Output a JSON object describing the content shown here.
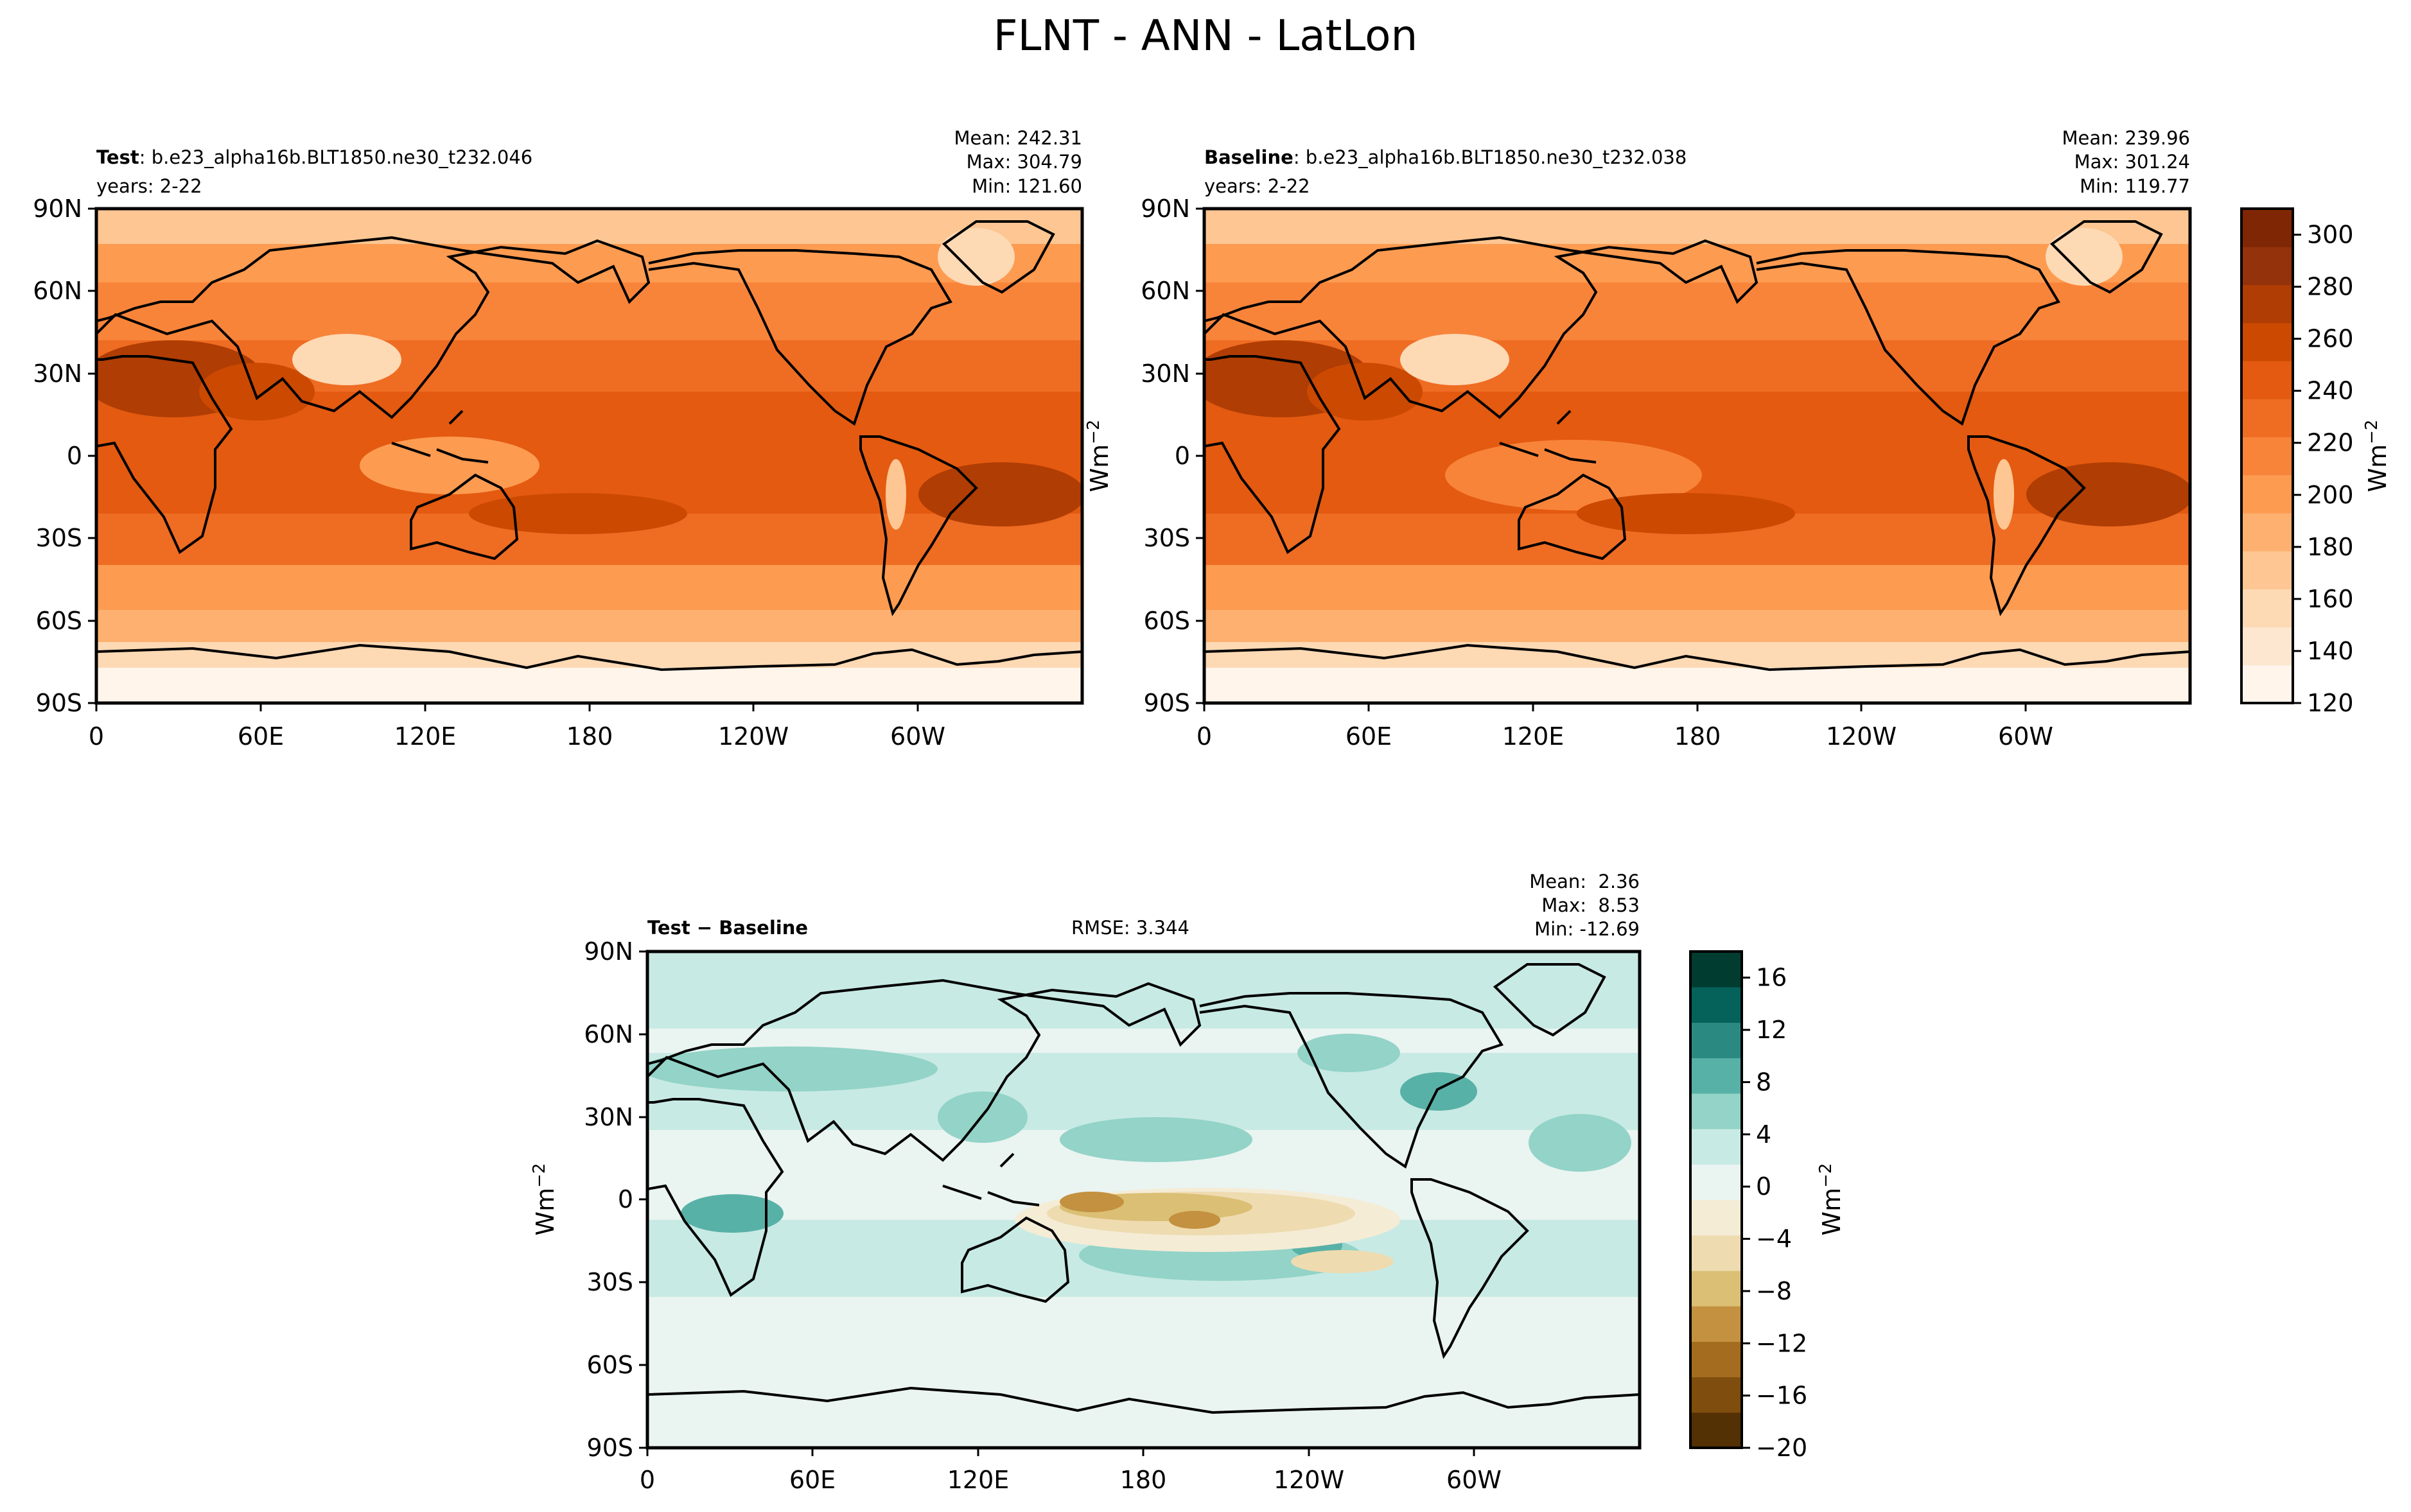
{
  "figure": {
    "title": "FLNT - ANN - LatLon"
  },
  "colors": {
    "orange_scale": [
      "#fff5eb",
      "#fee7d0",
      "#fdd9b4",
      "#fdc692",
      "#fdb06f",
      "#fd9b51",
      "#f8843a",
      "#ef6c23",
      "#e35a10",
      "#cc4902",
      "#b03d03",
      "#93320b",
      "#7f2704"
    ],
    "diff_scale": [
      "#543005",
      "#7f4d0d",
      "#a36c1f",
      "#c3913f",
      "#dbbf75",
      "#eedbb0",
      "#f5ecd6",
      "#eaf4f1",
      "#c8eae4",
      "#93d3c8",
      "#58b1a6",
      "#2a8a81",
      "#05625a",
      "#003c30"
    ],
    "coast": "#000000"
  },
  "chart_data": [
    {
      "type": "heatmap",
      "panel_label_bold": "Test",
      "panel_label_rest": ": b.e23_alpha16b.BLT1850.ne30_t232.046",
      "years": "years: 2-22",
      "stats": [
        "Mean: 242.31",
        "Max: 304.79",
        "Min: 121.60"
      ],
      "mean": 242.31,
      "max": 304.79,
      "min": 121.6,
      "x_ticks": [
        "0",
        "60E",
        "120E",
        "180",
        "120W",
        "60W"
      ],
      "y_ticks": [
        "90N",
        "60N",
        "30N",
        "0",
        "30S",
        "60S",
        "90S"
      ],
      "units": "Wm",
      "units_sup": "−2",
      "value_range": [
        120,
        310
      ]
    },
    {
      "type": "heatmap",
      "panel_label_bold": "Baseline",
      "panel_label_rest": ": b.e23_alpha16b.BLT1850.ne30_t232.038",
      "years": "years: 2-22",
      "stats": [
        "Mean: 239.96",
        "Max: 301.24",
        "Min: 119.77"
      ],
      "mean": 239.96,
      "max": 301.24,
      "min": 119.77,
      "x_ticks": [
        "0",
        "60E",
        "120E",
        "180",
        "120W",
        "60W"
      ],
      "y_ticks": [
        "90N",
        "60N",
        "30N",
        "0",
        "30S",
        "60S",
        "90S"
      ],
      "colorbar_ticks": [
        "300",
        "280",
        "260",
        "240",
        "220",
        "200",
        "180",
        "160",
        "140",
        "120"
      ],
      "colorbar_range": [
        120,
        310
      ],
      "units": "Wm",
      "units_sup": "−2"
    },
    {
      "type": "heatmap",
      "panel_label_bold": "Test − Baseline",
      "rmse": "RMSE: 3.344",
      "stats": [
        "Mean:  2.36",
        "Max:  8.53",
        "Min: -12.69"
      ],
      "mean": 2.36,
      "max": 8.53,
      "min": -12.69,
      "rmse_value": 3.344,
      "x_ticks": [
        "0",
        "60E",
        "120E",
        "180",
        "120W",
        "60W"
      ],
      "y_ticks": [
        "90N",
        "60N",
        "30N",
        "0",
        "30S",
        "60S",
        "90S"
      ],
      "colorbar_ticks": [
        "16",
        "12",
        "8",
        "4",
        "0",
        "−4",
        "−8",
        "−12",
        "−16",
        "−20"
      ],
      "colorbar_range": [
        -20,
        18
      ],
      "units": "Wm",
      "units_sup": "−2"
    }
  ]
}
